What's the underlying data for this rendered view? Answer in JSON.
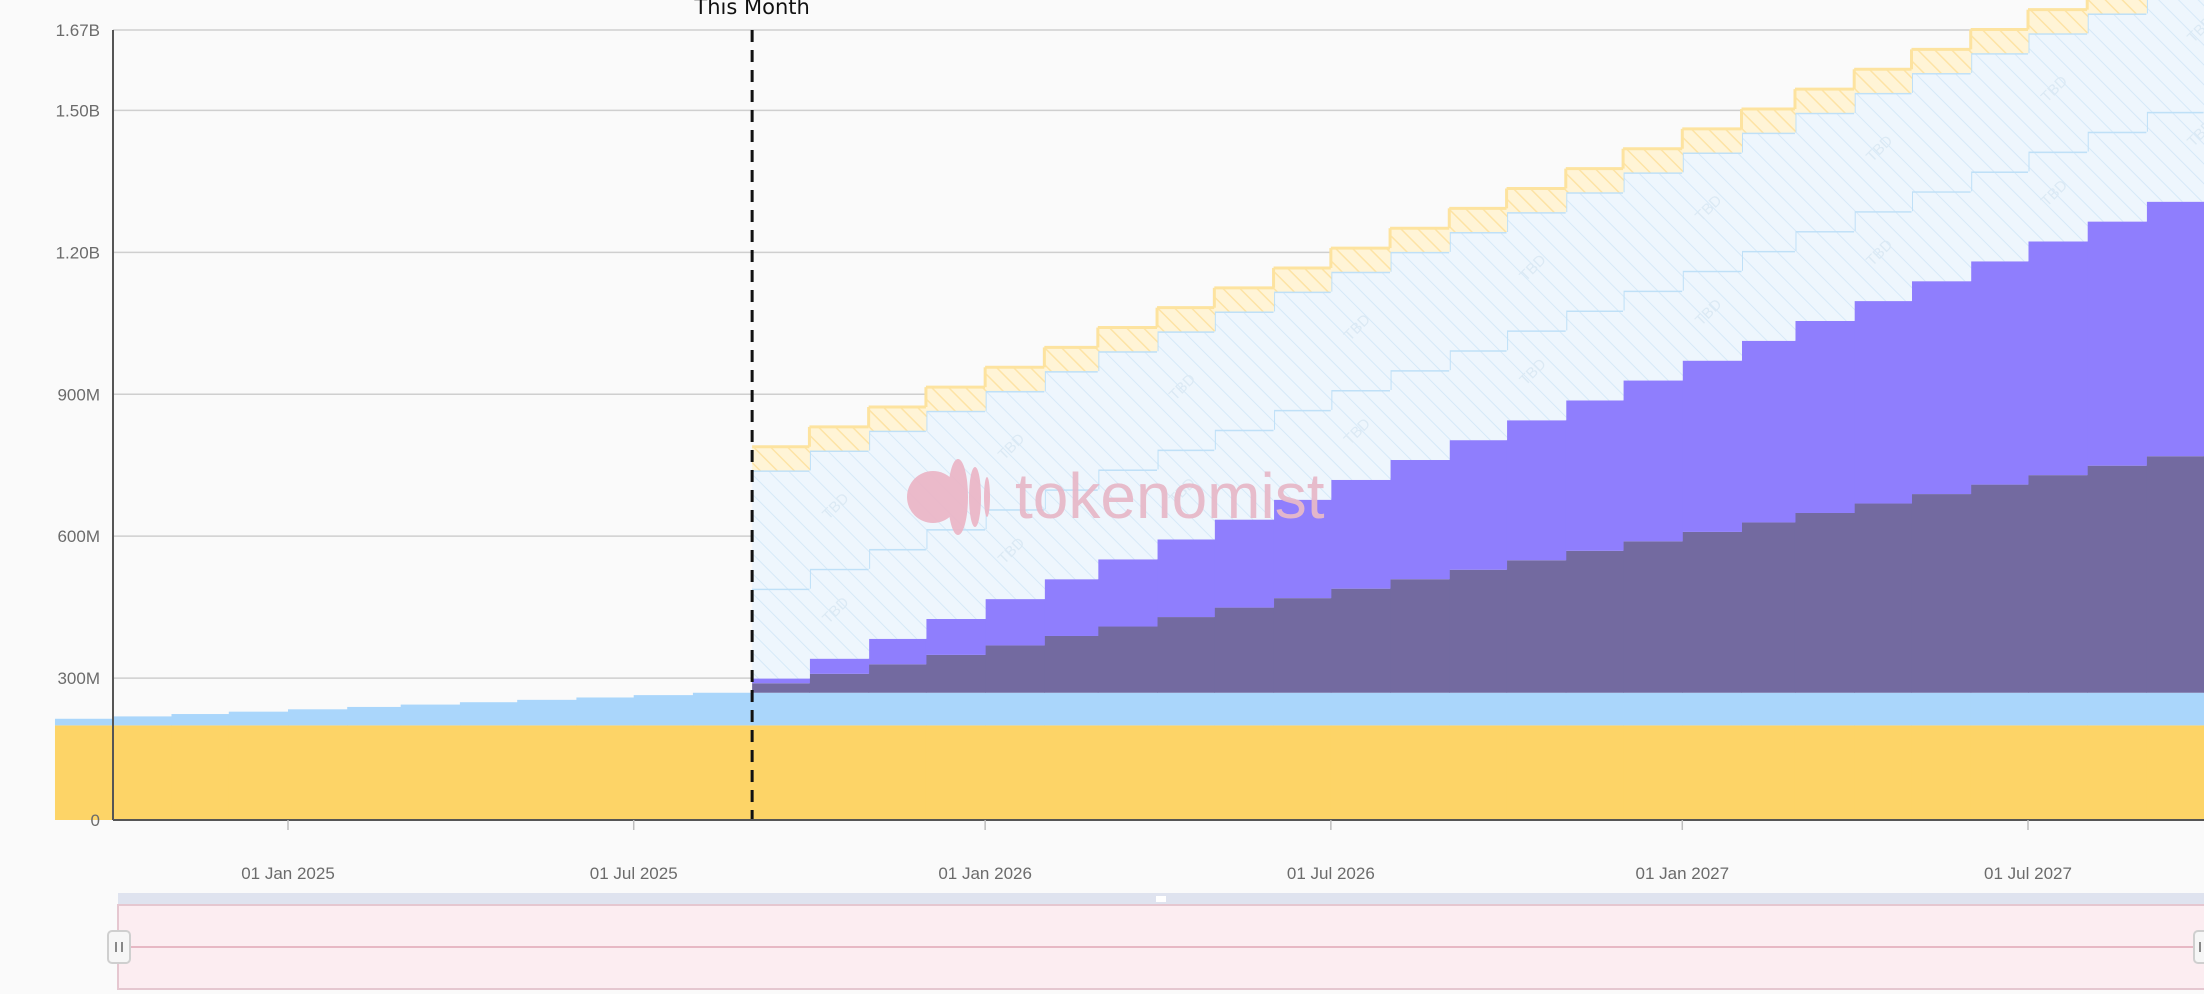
{
  "brand": {
    "watermark_text": "tokenomist",
    "logo_icon": "tokenomist-logo-icon"
  },
  "chart_data": {
    "type": "area",
    "stacked": true,
    "step": true,
    "x_unit": "month",
    "xlim": [
      "2024-09-01",
      "2027-12-01"
    ],
    "ylim": [
      0,
      1670000000
    ],
    "y_ticks": [
      {
        "value": 0,
        "label": "0"
      },
      {
        "value": 300000000,
        "label": "300M"
      },
      {
        "value": 600000000,
        "label": "600M"
      },
      {
        "value": 900000000,
        "label": "900M"
      },
      {
        "value": 1200000000,
        "label": "1.20B"
      },
      {
        "value": 1500000000,
        "label": "1.50B"
      },
      {
        "value": 1670000000,
        "label": "1.67B"
      }
    ],
    "x_ticks": [
      {
        "date": "2025-01-01",
        "label": "01 Jan 2025"
      },
      {
        "date": "2025-07-01",
        "label": "01 Jul 2025"
      },
      {
        "date": "2026-01-01",
        "label": "01 Jan 2026"
      },
      {
        "date": "2026-07-01",
        "label": "01 Jul 2026"
      },
      {
        "date": "2027-01-01",
        "label": "01 Jan 2027"
      },
      {
        "date": "2027-07-01",
        "label": "01 Jul 2027"
      }
    ],
    "grid": true,
    "marker": {
      "date": "2025-09-01",
      "label": "This Month"
    },
    "colors": {
      "base_yellow": "#fdd467",
      "light_blue": "#aad6fb",
      "dark_purple": "#736aa0",
      "purple": "#8f7efd",
      "tbd_blue": "#bfe0f7",
      "tbd_yellow": "#fde39f",
      "grid": "#cfcfcf"
    },
    "months": [
      "2024-09",
      "2024-10",
      "2024-11",
      "2024-12",
      "2025-01",
      "2025-02",
      "2025-03",
      "2025-04",
      "2025-05",
      "2025-06",
      "2025-07",
      "2025-08",
      "2025-09",
      "2025-10",
      "2025-11",
      "2025-12",
      "2026-01",
      "2026-02",
      "2026-03",
      "2026-04",
      "2026-05",
      "2026-06",
      "2026-07",
      "2026-08",
      "2026-09",
      "2026-10",
      "2026-11",
      "2026-12",
      "2027-01",
      "2027-02",
      "2027-03",
      "2027-04",
      "2027-05",
      "2027-06",
      "2027-07",
      "2027-08",
      "2027-09",
      "2027-10",
      "2027-11"
    ],
    "series": [
      {
        "kind": "area",
        "values": [
          200000000,
          200000000,
          200000000,
          200000000,
          200000000,
          200000000,
          200000000,
          200000000,
          200000000,
          200000000,
          200000000,
          200000000,
          200000000,
          200000000,
          200000000,
          200000000,
          200000000,
          200000000,
          200000000,
          200000000,
          200000000,
          200000000,
          200000000,
          200000000,
          200000000,
          200000000,
          200000000,
          200000000,
          200000000,
          200000000,
          200000000,
          200000000,
          200000000,
          200000000,
          200000000,
          200000000,
          200000000,
          200000000,
          200000000
        ]
      },
      {
        "kind": "area",
        "values": [
          14000000,
          19000000,
          24000000,
          29000000,
          34000000,
          39000000,
          44000000,
          49000000,
          54000000,
          59000000,
          64000000,
          69000000,
          69000000,
          69000000,
          69000000,
          69000000,
          69000000,
          69000000,
          69000000,
          69000000,
          69000000,
          69000000,
          69000000,
          69000000,
          69000000,
          69000000,
          69000000,
          69000000,
          69000000,
          69000000,
          69000000,
          69000000,
          69000000,
          69000000,
          69000000,
          69000000,
          69000000,
          69000000,
          69000000
        ]
      },
      {
        "kind": "area",
        "start_index": 12,
        "values": [
          null,
          null,
          null,
          null,
          null,
          null,
          null,
          null,
          null,
          null,
          null,
          null,
          20000000,
          40000000,
          60000000,
          80000000,
          100000000,
          120000000,
          140000000,
          160000000,
          180000000,
          200000000,
          220000000,
          240000000,
          260000000,
          280000000,
          300000000,
          320000000,
          340000000,
          360000000,
          380000000,
          400000000,
          420000000,
          440000000,
          460000000,
          480000000,
          500000000,
          520000000,
          540000000
        ]
      },
      {
        "kind": "area",
        "start_index": 12,
        "values": [
          null,
          null,
          null,
          null,
          null,
          null,
          null,
          null,
          null,
          null,
          null,
          null,
          10000000,
          32000000,
          54000000,
          76000000,
          98000000,
          120000000,
          142000000,
          164000000,
          186000000,
          208000000,
          230000000,
          252000000,
          274000000,
          296000000,
          318000000,
          340000000,
          362000000,
          384000000,
          406000000,
          428000000,
          450000000,
          472000000,
          494000000,
          516000000,
          538000000,
          560000000,
          582000000
        ]
      },
      {
        "kind": "tbd",
        "label": "TBD",
        "start_index": 12,
        "values": [
          null,
          null,
          null,
          null,
          null,
          null,
          null,
          null,
          null,
          null,
          null,
          null,
          190000000,
          190000000,
          190000000,
          190000000,
          190000000,
          190000000,
          190000000,
          190000000,
          190000000,
          190000000,
          190000000,
          190000000,
          190000000,
          190000000,
          190000000,
          190000000,
          190000000,
          190000000,
          190000000,
          190000000,
          190000000,
          190000000,
          190000000,
          190000000,
          190000000,
          190000000,
          190000000
        ]
      },
      {
        "kind": "tbd",
        "label": "TBD",
        "start_index": 12,
        "values": [
          null,
          null,
          null,
          null,
          null,
          null,
          null,
          null,
          null,
          null,
          null,
          null,
          250000000,
          250000000,
          250000000,
          250000000,
          250000000,
          250000000,
          250000000,
          250000000,
          250000000,
          250000000,
          250000000,
          250000000,
          250000000,
          250000000,
          250000000,
          250000000,
          250000000,
          250000000,
          250000000,
          250000000,
          250000000,
          250000000,
          250000000,
          250000000,
          250000000,
          250000000,
          250000000
        ]
      },
      {
        "kind": "tbd",
        "label": "TBD",
        "start_index": 12,
        "values": [
          null,
          null,
          null,
          null,
          null,
          null,
          null,
          null,
          null,
          null,
          null,
          null,
          50000000,
          50000000,
          50000000,
          50000000,
          50000000,
          50000000,
          50000000,
          50000000,
          50000000,
          50000000,
          50000000,
          50000000,
          50000000,
          50000000,
          50000000,
          50000000,
          50000000,
          50000000,
          50000000,
          50000000,
          50000000,
          50000000,
          50000000,
          50000000,
          50000000,
          50000000,
          50000000
        ]
      }
    ]
  }
}
